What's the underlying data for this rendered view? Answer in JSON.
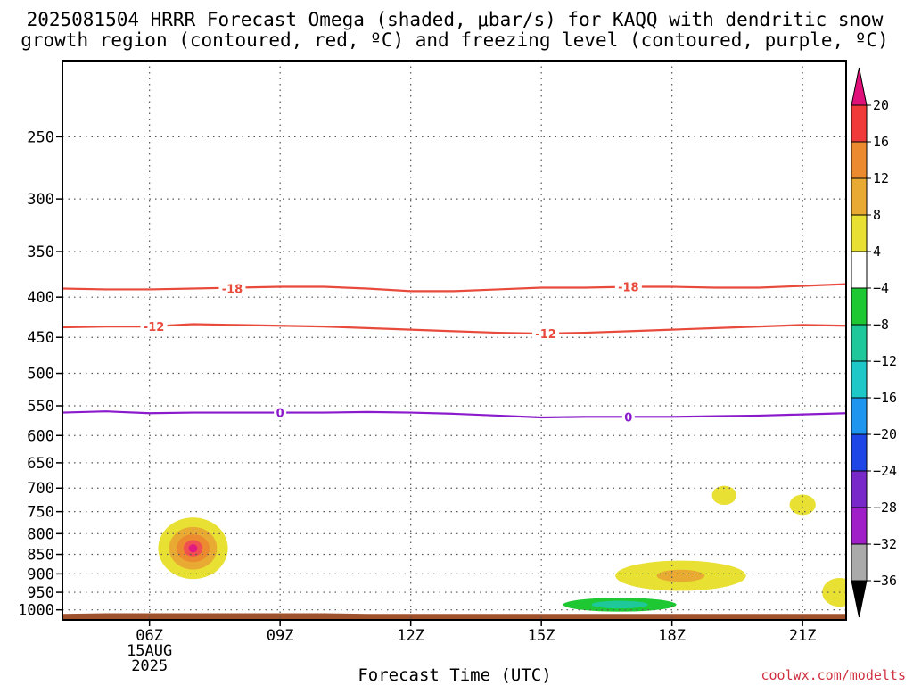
{
  "title_line1": "2025081504 HRRR Forecast Omega (shaded, μbar/s) for KAQQ with dendritic snow",
  "title_line2": "growth region (contoured, red, ºC) and freezing level (contoured, purple, ºC)",
  "credit": "coolwx.com/modelts",
  "chart_data": {
    "type": "time-height cross section",
    "title": "2025081504 HRRR Forecast Omega (shaded, μbar/s) for KAQQ with dendritic snow growth region (contoured, red, ºC) and freezing level (contoured, purple, ºC)",
    "xlabel": "Forecast Time (UTC)",
    "ylabel": "",
    "x_ticks": [
      {
        "hour": 6,
        "label": "06Z"
      },
      {
        "hour": 9,
        "label": "09Z"
      },
      {
        "hour": 12,
        "label": "12Z"
      },
      {
        "hour": 15,
        "label": "15Z"
      },
      {
        "hour": 18,
        "label": "18Z"
      },
      {
        "hour": 21,
        "label": "21Z"
      }
    ],
    "x_date_label": [
      "15AUG",
      "2025"
    ],
    "xlim": [
      4,
      22
    ],
    "y_axis": "pressure (hPa), log, inverted",
    "ylim_hpa": [
      1030,
      200
    ],
    "y_ticks": [
      250,
      300,
      350,
      400,
      450,
      500,
      550,
      600,
      650,
      700,
      750,
      800,
      850,
      900,
      950,
      1000
    ],
    "grid": "dotted",
    "surface_color": "#a0522d",
    "surface_top_hpa": [
      [
        4,
        1012
      ],
      [
        5,
        1010
      ],
      [
        6,
        1010
      ],
      [
        7,
        1010
      ],
      [
        8,
        1010
      ],
      [
        9,
        1010
      ],
      [
        10,
        1010
      ],
      [
        11,
        1012
      ],
      [
        12,
        1012
      ],
      [
        13,
        1012
      ],
      [
        14,
        1012
      ],
      [
        15,
        1012
      ],
      [
        16,
        1012
      ],
      [
        17,
        1012
      ],
      [
        18,
        1012
      ],
      [
        19,
        1012
      ],
      [
        20,
        1012
      ],
      [
        21,
        1012
      ],
      [
        22,
        1012
      ]
    ],
    "contours": [
      {
        "name": "dendritic growth -18",
        "value": -18,
        "label": "-18",
        "color": "#e84a3c",
        "points": [
          [
            4,
            390
          ],
          [
            5,
            391
          ],
          [
            6,
            391
          ],
          [
            7,
            390
          ],
          [
            8,
            389
          ],
          [
            9,
            388
          ],
          [
            10,
            388
          ],
          [
            11,
            390
          ],
          [
            12,
            393
          ],
          [
            13,
            393
          ],
          [
            14,
            391
          ],
          [
            15,
            389
          ],
          [
            16,
            389
          ],
          [
            17,
            388
          ],
          [
            18,
            388
          ],
          [
            19,
            389
          ],
          [
            20,
            389
          ],
          [
            21,
            387
          ],
          [
            22,
            385
          ]
        ],
        "label_at": [
          [
            7.9,
            390
          ],
          [
            17.0,
            388
          ]
        ]
      },
      {
        "name": "dendritic growth -12",
        "value": -12,
        "label": "-12",
        "color": "#e84a3c",
        "points": [
          [
            4,
            437
          ],
          [
            5,
            436
          ],
          [
            6,
            436
          ],
          [
            7,
            433
          ],
          [
            8,
            434
          ],
          [
            9,
            435
          ],
          [
            10,
            436
          ],
          [
            11,
            438
          ],
          [
            12,
            440
          ],
          [
            13,
            442
          ],
          [
            14,
            444
          ],
          [
            15,
            445
          ],
          [
            16,
            444
          ],
          [
            17,
            442
          ],
          [
            18,
            440
          ],
          [
            19,
            438
          ],
          [
            20,
            436
          ],
          [
            21,
            434
          ],
          [
            22,
            435
          ]
        ],
        "label_at": [
          [
            6.1,
            436
          ],
          [
            15.1,
            445
          ]
        ]
      },
      {
        "name": "freezing level 0",
        "value": 0,
        "label": "0",
        "color": "#8a1acc",
        "points": [
          [
            4,
            561
          ],
          [
            5,
            559
          ],
          [
            6,
            562
          ],
          [
            7,
            561
          ],
          [
            8,
            561
          ],
          [
            9,
            561
          ],
          [
            10,
            561
          ],
          [
            11,
            560
          ],
          [
            12,
            561
          ],
          [
            13,
            563
          ],
          [
            14,
            566
          ],
          [
            15,
            569
          ],
          [
            16,
            568
          ],
          [
            17,
            568
          ],
          [
            18,
            568
          ],
          [
            19,
            567
          ],
          [
            20,
            566
          ],
          [
            21,
            564
          ],
          [
            22,
            562
          ]
        ],
        "label_at": [
          [
            9.0,
            561
          ],
          [
            17.0,
            568
          ]
        ]
      }
    ],
    "omega_features": [
      {
        "center": [
          7.0,
          835
        ],
        "min_value": 20,
        "note": "upward omega maximum",
        "levels": [
          {
            "value": 4,
            "color": "#e8e032",
            "rx_h": 0.8,
            "ry_hpa": 75
          },
          {
            "value": 8,
            "color": "#e8aa32",
            "rx_h": 0.55,
            "ry_hpa": 52
          },
          {
            "value": 12,
            "color": "#ec8a30",
            "rx_h": 0.38,
            "ry_hpa": 34
          },
          {
            "value": 16,
            "color": "#f05050",
            "rx_h": 0.22,
            "ry_hpa": 20
          },
          {
            "value": 20,
            "color": "#e01a80",
            "rx_h": 0.1,
            "ry_hpa": 10
          }
        ]
      },
      {
        "center": [
          18.2,
          905
        ],
        "note": "lower-level band",
        "levels": [
          {
            "value": 4,
            "color": "#e8e032",
            "rx_h": 1.5,
            "ry_hpa": 40
          },
          {
            "value": 8,
            "color": "#e8aa32",
            "rx_h": 0.55,
            "ry_hpa": 16
          }
        ]
      },
      {
        "center": [
          19.2,
          715
        ],
        "levels": [
          {
            "value": 4,
            "color": "#e8e032",
            "rx_h": 0.28,
            "ry_hpa": 20
          }
        ]
      },
      {
        "center": [
          21.0,
          735
        ],
        "levels": [
          {
            "value": 4,
            "color": "#e8e032",
            "rx_h": 0.3,
            "ry_hpa": 22
          }
        ]
      },
      {
        "center": [
          21.85,
          950
        ],
        "levels": [
          {
            "value": 4,
            "color": "#e8e032",
            "rx_h": 0.4,
            "ry_hpa": 40
          }
        ]
      },
      {
        "center": [
          16.8,
          985
        ],
        "note": "subsidence near surface",
        "levels": [
          {
            "value": -4,
            "color": "#1ec832",
            "rx_h": 1.3,
            "ry_hpa": 20
          },
          {
            "value": -8,
            "color": "#1ec89a",
            "rx_h": 0.65,
            "ry_hpa": 11
          }
        ]
      }
    ],
    "colorbar": {
      "ticks": [
        "20",
        "16",
        "12",
        "8",
        "4",
        "−4",
        "−8",
        "−12",
        "−16",
        "−20",
        "−24",
        "−28",
        "−32",
        "−36"
      ],
      "top_color": "#e0107a",
      "bottom_color": "#000000",
      "bins": [
        "#f03a3a",
        "#ec8a30",
        "#e8aa32",
        "#e8e032",
        "#ffffff",
        "#1ec832",
        "#1ec89a",
        "#1ec8c8",
        "#1e96f0",
        "#1e46e6",
        "#7828c8",
        "#a01ec8",
        "#aaaaaa"
      ]
    }
  }
}
